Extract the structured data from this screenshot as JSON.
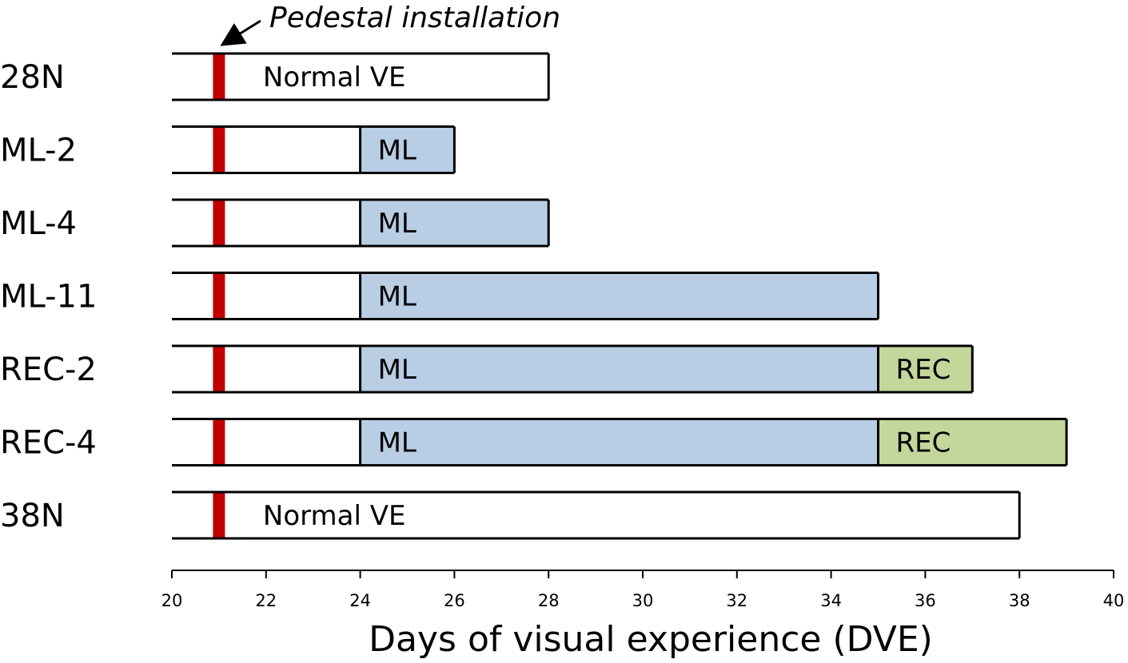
{
  "chart_data": {
    "type": "timeline",
    "title": "",
    "xlabel": "Days of visual experience (DVE)",
    "ylabel": "",
    "xlim": [
      20,
      40
    ],
    "xticks": [
      "20",
      "22",
      "24",
      "26",
      "28",
      "30",
      "32",
      "34",
      "36",
      "38",
      "40"
    ],
    "annotation": {
      "text": "Pedestal installation",
      "day": 21
    },
    "colors": {
      "normal": "#ffffff",
      "ml": "#b9cde4",
      "rec": "#c4d79b",
      "pedestal": "#c00000",
      "outline": "#000000"
    },
    "rows": [
      {
        "label": "28N",
        "start": 20,
        "end": 28,
        "pedestal": 21,
        "segments": [
          {
            "type": "normal",
            "from": 20,
            "to": 28,
            "label": "Normal VE"
          }
        ]
      },
      {
        "label": "ML-2",
        "start": 20,
        "end": 26,
        "pedestal": 21,
        "segments": [
          {
            "type": "normal",
            "from": 20,
            "to": 24,
            "label": ""
          },
          {
            "type": "ml",
            "from": 24,
            "to": 26,
            "label": "ML"
          }
        ]
      },
      {
        "label": "ML-4",
        "start": 20,
        "end": 28,
        "pedestal": 21,
        "segments": [
          {
            "type": "normal",
            "from": 20,
            "to": 24,
            "label": ""
          },
          {
            "type": "ml",
            "from": 24,
            "to": 28,
            "label": "ML"
          }
        ]
      },
      {
        "label": "ML-11",
        "start": 20,
        "end": 35,
        "pedestal": 21,
        "segments": [
          {
            "type": "normal",
            "from": 20,
            "to": 24,
            "label": ""
          },
          {
            "type": "ml",
            "from": 24,
            "to": 35,
            "label": "ML"
          }
        ]
      },
      {
        "label": "REC-2",
        "start": 20,
        "end": 37,
        "pedestal": 21,
        "segments": [
          {
            "type": "normal",
            "from": 20,
            "to": 24,
            "label": ""
          },
          {
            "type": "ml",
            "from": 24,
            "to": 35,
            "label": "ML"
          },
          {
            "type": "rec",
            "from": 35,
            "to": 37,
            "label": "REC"
          }
        ]
      },
      {
        "label": "REC-4",
        "start": 20,
        "end": 39,
        "pedestal": 21,
        "segments": [
          {
            "type": "normal",
            "from": 20,
            "to": 24,
            "label": ""
          },
          {
            "type": "ml",
            "from": 24,
            "to": 35,
            "label": "ML"
          },
          {
            "type": "rec",
            "from": 35,
            "to": 39,
            "label": "REC"
          }
        ]
      },
      {
        "label": "38N",
        "start": 20,
        "end": 38,
        "pedestal": 21,
        "segments": [
          {
            "type": "normal",
            "from": 20,
            "to": 38,
            "label": "Normal VE"
          }
        ]
      }
    ]
  }
}
